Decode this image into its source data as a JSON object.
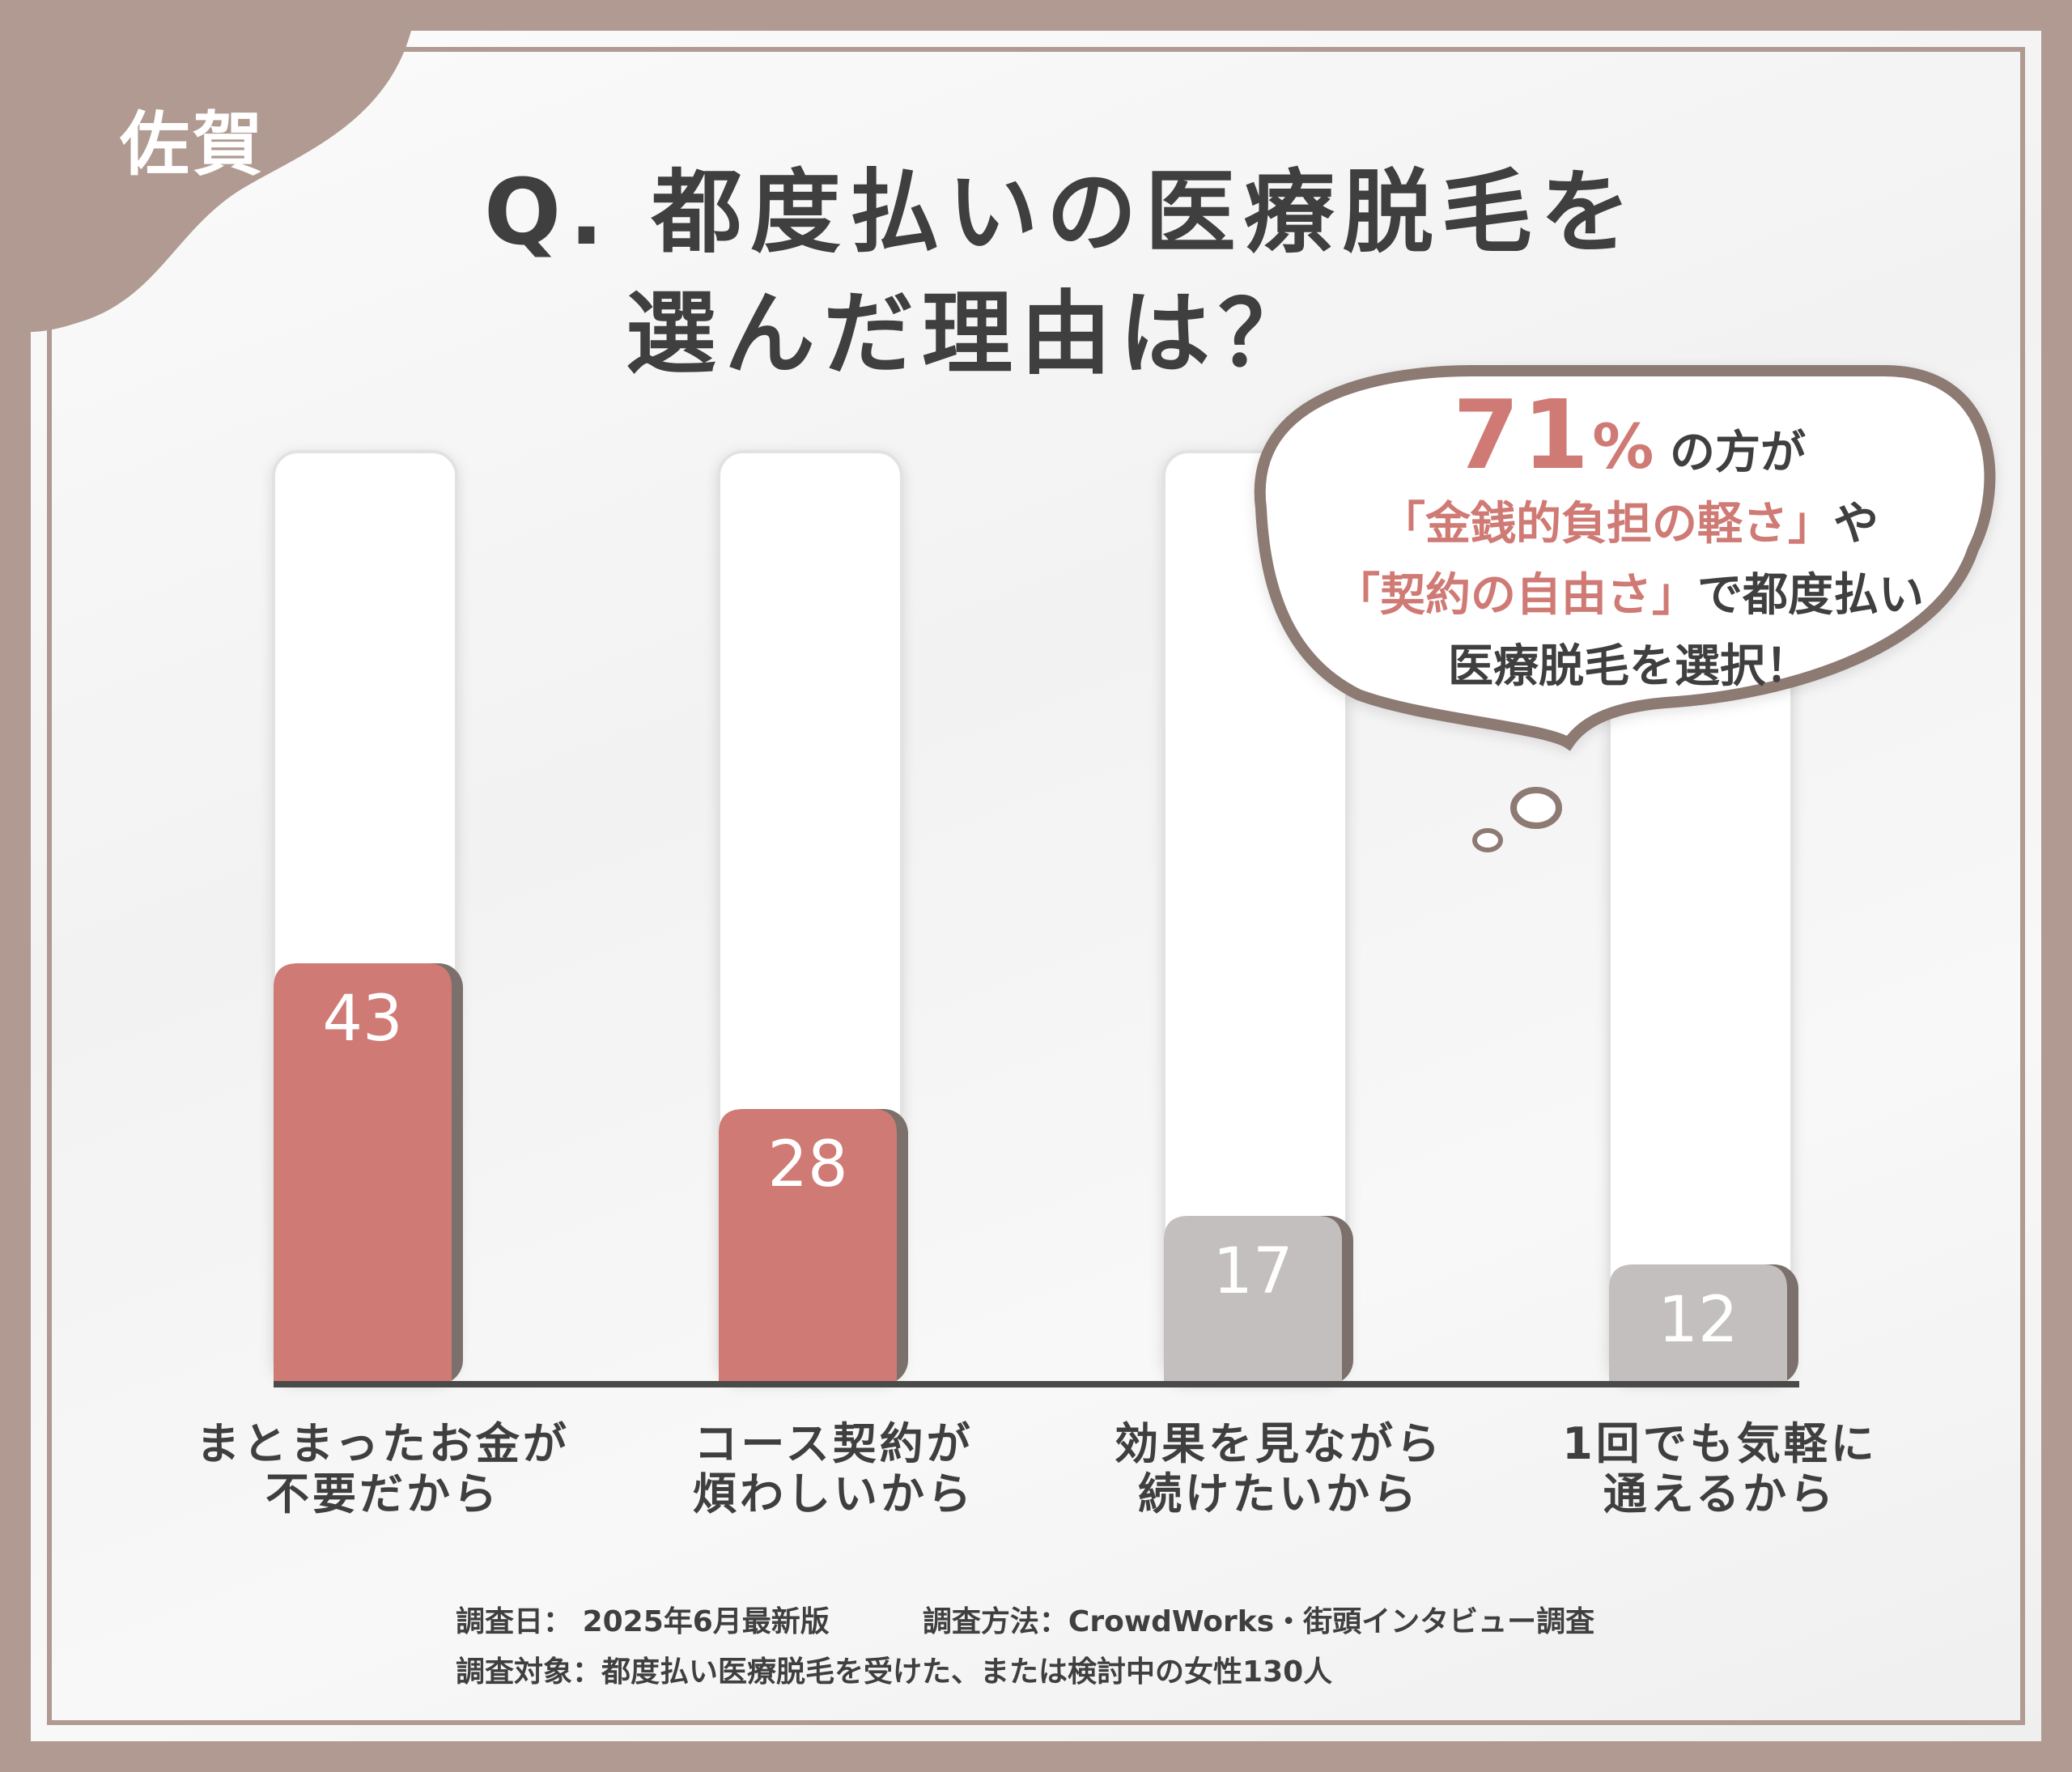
{
  "region_label": "佐賀",
  "title": {
    "line1": "Q. 都度払いの医療脱毛を",
    "line2": "選んだ理由は？"
  },
  "callout": {
    "percent_value": "71",
    "percent_sign": "%",
    "after_percent": "の方が",
    "line2_accent": "「金銭的負担の軽さ」",
    "line2_rest": "や",
    "line3_accent": "「契約の自由さ」",
    "line3_rest": "で都度払い",
    "line4": "医療脱毛を選択！"
  },
  "chart_data": {
    "type": "bar",
    "categories": [
      "まとまったお金が\n不要だから",
      "コース契約が\n煩わしいから",
      "効果を見ながら\n続けたいから",
      "1回でも気軽に\n通えるから"
    ],
    "values": [
      43,
      28,
      17,
      12
    ],
    "value_labels": [
      "43",
      "28",
      "17",
      "12"
    ],
    "ylim": [
      0,
      100
    ],
    "colors": [
      "#cf7a74",
      "#cf7a74",
      "#c2bfbe",
      "#c2bfbe"
    ],
    "highlight_color": "#cf7a74",
    "muted_color": "#c2bfbe",
    "grid": false,
    "legend": "none"
  },
  "footnote": {
    "date_label": "調査日：",
    "date_value": "2025年6月最新版",
    "method_label": "調査方法：",
    "method_value": "CrowdWorks・街頭インタビュー調査",
    "target_label": "調査対象：",
    "target_value": "都度払い医療脱毛を受けた、または検討中の女性130人"
  }
}
